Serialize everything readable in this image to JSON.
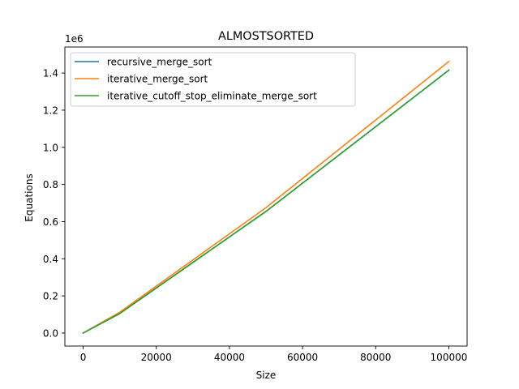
{
  "chart_data": {
    "type": "line",
    "title": "ALMOSTSORTED",
    "xlabel": "Size",
    "ylabel": "Equations",
    "y_offset_label": "1e6",
    "xlim": [
      -5000,
      105000
    ],
    "ylim": [
      -0.07,
      1.54
    ],
    "x_ticks": [
      0,
      20000,
      40000,
      60000,
      80000,
      100000
    ],
    "x_tick_labels": [
      "0",
      "20000",
      "40000",
      "60000",
      "80000",
      "100000"
    ],
    "y_ticks": [
      0.0,
      0.2,
      0.4,
      0.6,
      0.8,
      1.0,
      1.2,
      1.4
    ],
    "y_tick_labels": [
      "0.0",
      "0.2",
      "0.4",
      "0.6",
      "0.8",
      "1.0",
      "1.2",
      "1.4"
    ],
    "y_scale": 1000000,
    "grid": false,
    "legend_position": "top-left",
    "x": [
      0,
      10000,
      50000,
      100000
    ],
    "series": [
      {
        "name": "recursive_merge_sort",
        "color": "#1f77b4",
        "values": [
          0,
          0.105,
          0.655,
          1.415
        ]
      },
      {
        "name": "iterative_merge_sort",
        "color": "#ff7f0e",
        "values": [
          0,
          0.112,
          0.675,
          1.462
        ]
      },
      {
        "name": "iterative_cutoff_stop_eliminate_merge_sort",
        "color": "#2ca02c",
        "values": [
          0,
          0.105,
          0.655,
          1.415
        ]
      }
    ]
  }
}
